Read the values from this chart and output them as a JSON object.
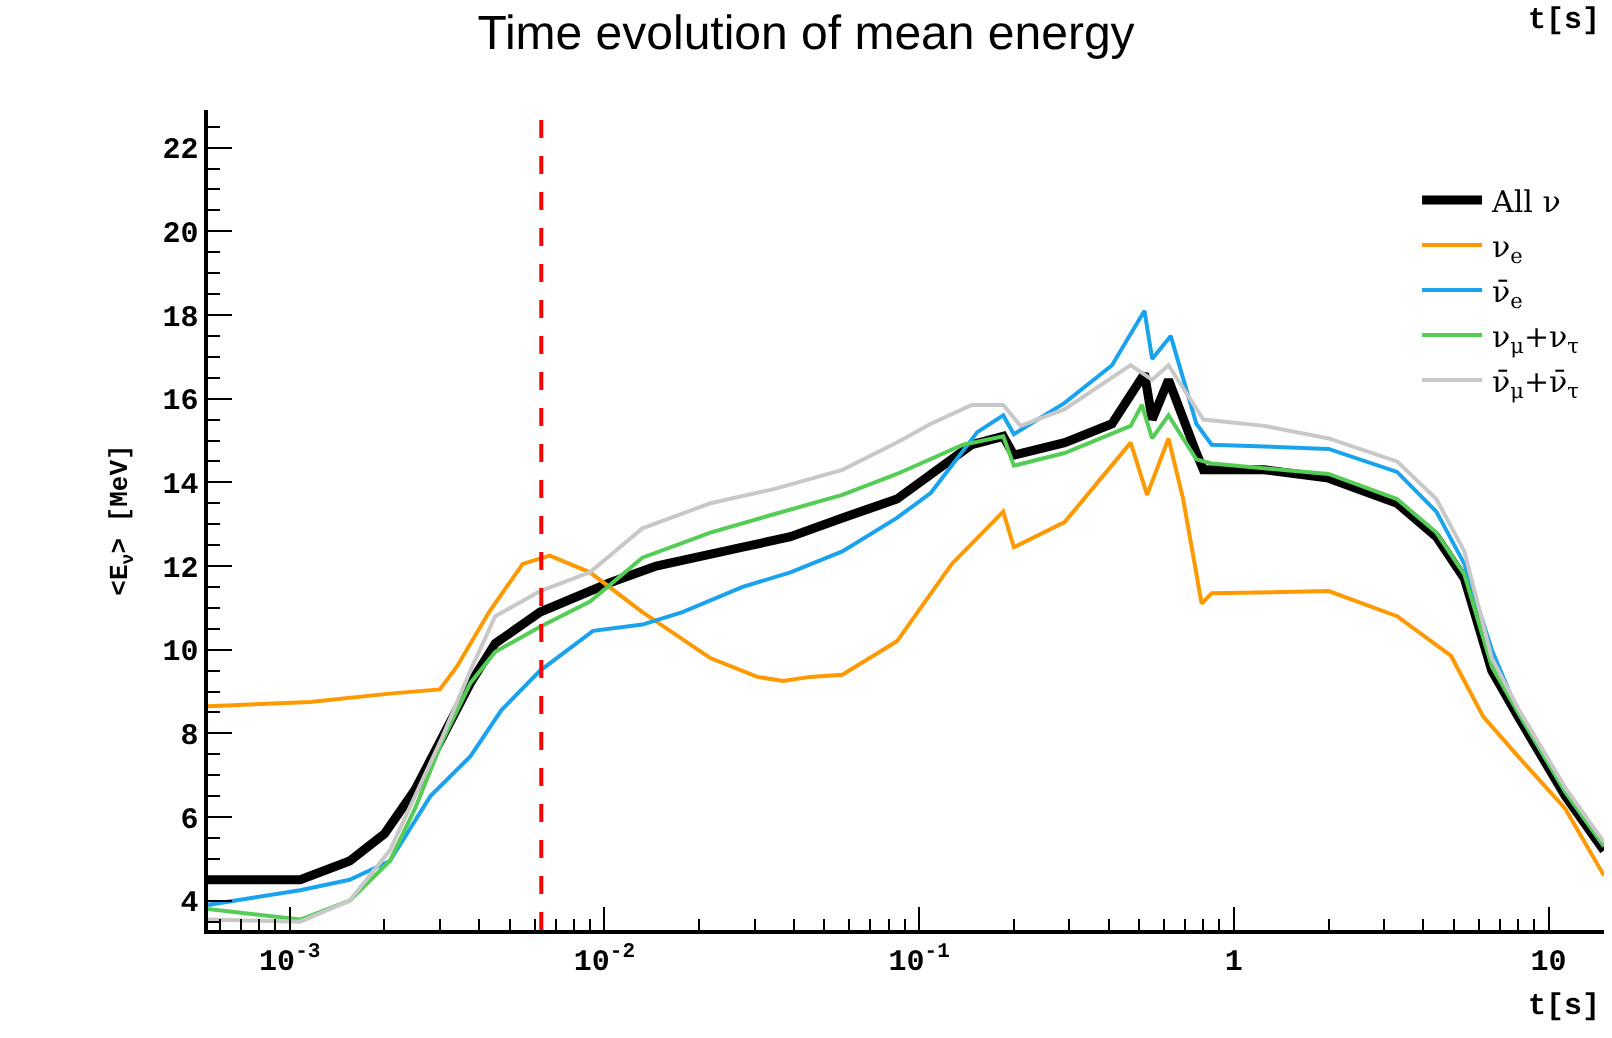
{
  "chart_data": {
    "type": "line",
    "title": "Time evolution of mean energy",
    "xlabel": "t[s]",
    "ylabel": "<E$_{ν}$> [MeV]",
    "log": "x",
    "xlim": [
      0.00055,
      15
    ],
    "ylim": [
      3.3,
      22.9
    ],
    "xticks": [
      {
        "value": 0.001,
        "label": "10$^{-3}$"
      },
      {
        "value": 0.01,
        "label": "10$^{-2}$"
      },
      {
        "value": 0.1,
        "label": "10$^{-1}$"
      },
      1,
      10
    ],
    "yticks": [
      4,
      6,
      8,
      10,
      12,
      14,
      16,
      18,
      20,
      22
    ],
    "legend": "top right",
    "marker": "none",
    "line_style": "solid",
    "ref_lines": [
      {
        "axis": "x",
        "value": 0.0063,
        "color": "#ff0000",
        "line_style": "dashed"
      }
    ],
    "annotations": [
      "t[s]"
    ],
    "series": [
      {
        "name": "All ν",
        "color": "#000000",
        "x": [
          0.00055,
          0.00108,
          0.00155,
          0.002,
          0.0025,
          0.00305,
          0.00375,
          0.0045,
          0.00625,
          0.0104,
          0.0146,
          0.0275,
          0.039,
          0.057,
          0.085,
          0.147,
          0.185,
          0.2,
          0.29,
          0.41,
          0.52,
          0.55,
          0.62,
          0.76,
          0.8,
          1.25,
          2.0,
          3.3,
          4.4,
          5.4,
          6.6,
          8.0,
          11.3,
          15
        ],
        "values": [
          4.5,
          4.5,
          4.95,
          5.6,
          6.65,
          7.9,
          9.2,
          10.15,
          10.9,
          11.6,
          12.0,
          12.45,
          12.7,
          13.15,
          13.6,
          14.9,
          15.1,
          14.65,
          14.95,
          15.4,
          16.6,
          15.5,
          16.45,
          14.7,
          14.3,
          14.3,
          14.1,
          13.5,
          12.7,
          11.7,
          9.5,
          8.4,
          6.5,
          5.2
        ]
      },
      {
        "name": "ν$_{e}$",
        "color": "#ff9900",
        "x": [
          0.00055,
          0.00116,
          0.00208,
          0.003,
          0.0034,
          0.0043,
          0.0055,
          0.0067,
          0.009,
          0.0132,
          0.0217,
          0.0306,
          0.037,
          0.045,
          0.057,
          0.085,
          0.127,
          0.185,
          0.2,
          0.29,
          0.47,
          0.53,
          0.62,
          0.69,
          0.79,
          0.85,
          2.0,
          3.3,
          4.9,
          6.2,
          8.0,
          11.3,
          15
        ],
        "values": [
          8.65,
          8.75,
          8.95,
          9.05,
          9.6,
          10.9,
          12.05,
          12.25,
          11.85,
          10.9,
          9.8,
          9.35,
          9.25,
          9.35,
          9.4,
          10.2,
          12.05,
          13.3,
          12.45,
          13.05,
          14.95,
          13.7,
          15.05,
          13.6,
          11.1,
          11.35,
          11.4,
          10.8,
          9.85,
          8.4,
          7.45,
          6.2,
          4.6
        ]
      },
      {
        "name": "ν̄$_{e}$",
        "color": "#1aa3ec",
        "x": [
          0.00055,
          0.00108,
          0.00155,
          0.00208,
          0.0028,
          0.00375,
          0.0047,
          0.00625,
          0.0092,
          0.0132,
          0.0177,
          0.0275,
          0.039,
          0.057,
          0.085,
          0.109,
          0.153,
          0.185,
          0.2,
          0.29,
          0.41,
          0.52,
          0.55,
          0.63,
          0.76,
          0.85,
          2.0,
          3.3,
          4.4,
          5.4,
          6.6,
          8.0,
          11.3,
          15
        ],
        "values": [
          3.9,
          4.25,
          4.5,
          4.95,
          6.5,
          7.45,
          8.55,
          9.5,
          10.45,
          10.6,
          10.9,
          11.5,
          11.85,
          12.35,
          13.15,
          13.75,
          15.2,
          15.6,
          15.15,
          15.9,
          16.8,
          18.1,
          16.95,
          17.5,
          15.4,
          14.9,
          14.8,
          14.25,
          13.3,
          12.05,
          10.0,
          8.5,
          6.6,
          5.3
        ]
      },
      {
        "name": "ν$_{μ}$+ν$_{τ}$",
        "color": "#55cc55",
        "x": [
          0.00055,
          0.00108,
          0.00155,
          0.00208,
          0.0025,
          0.00305,
          0.00375,
          0.0045,
          0.00625,
          0.009,
          0.0132,
          0.0217,
          0.035,
          0.057,
          0.085,
          0.138,
          0.185,
          0.2,
          0.29,
          0.47,
          0.51,
          0.55,
          0.62,
          0.76,
          0.85,
          2.0,
          3.3,
          4.4,
          5.4,
          6.6,
          8.0,
          11.3,
          15
        ],
        "values": [
          3.8,
          3.55,
          4.0,
          4.95,
          6.2,
          7.8,
          9.2,
          9.95,
          10.55,
          11.15,
          12.2,
          12.8,
          13.25,
          13.7,
          14.2,
          14.9,
          15.1,
          14.4,
          14.7,
          15.35,
          15.85,
          15.05,
          15.6,
          14.55,
          14.45,
          14.2,
          13.6,
          12.8,
          11.8,
          9.6,
          8.5,
          6.6,
          5.3
        ]
      },
      {
        "name": "ν̄$_{μ}$+ν̄$_{τ}$",
        "color": "#c8c8c8",
        "x": [
          0.00055,
          0.00108,
          0.00155,
          0.00208,
          0.00305,
          0.00375,
          0.0045,
          0.00625,
          0.009,
          0.0132,
          0.0217,
          0.035,
          0.057,
          0.085,
          0.109,
          0.147,
          0.185,
          0.21,
          0.29,
          0.47,
          0.55,
          0.62,
          0.8,
          1.25,
          2.0,
          3.3,
          4.4,
          5.4,
          6.6,
          8.0,
          11.3,
          15
        ],
        "values": [
          3.55,
          3.5,
          4.0,
          5.2,
          7.9,
          9.5,
          10.8,
          11.4,
          11.85,
          12.9,
          13.5,
          13.85,
          14.3,
          14.95,
          15.4,
          15.85,
          15.85,
          15.35,
          15.75,
          16.8,
          16.45,
          16.8,
          15.5,
          15.35,
          15.05,
          14.5,
          13.6,
          12.35,
          9.8,
          8.6,
          6.7,
          5.4
        ]
      }
    ]
  }
}
